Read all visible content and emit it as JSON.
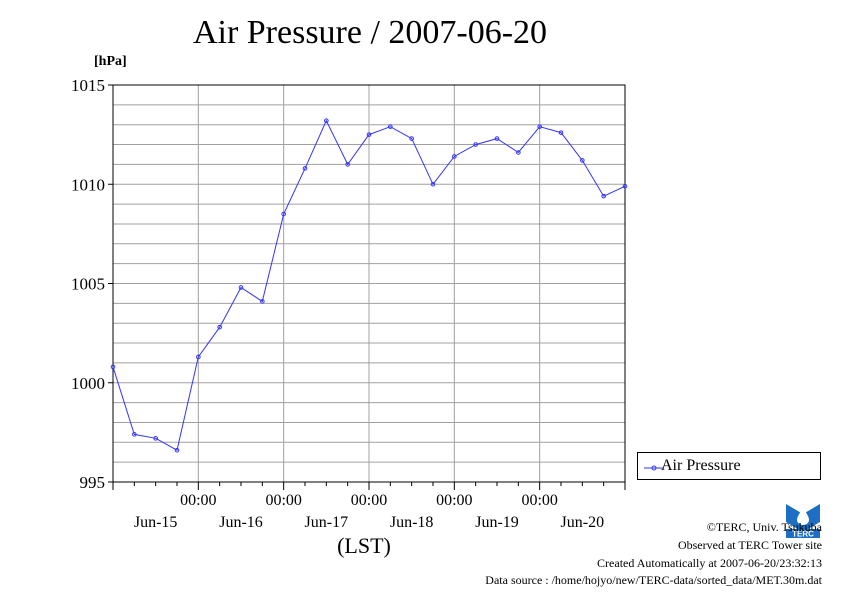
{
  "header": {
    "title": "Air Pressure / 2007-06-20",
    "unit": "[hPa]"
  },
  "legend": {
    "label": "Air Pressure"
  },
  "credits": {
    "copyright": "©TERC, Univ. Tsukuba",
    "observed": "Observed at TERC Tower site",
    "created": "Created Automatically at 2007-06-20/23:32:13",
    "source": "Data source : /home/hojyo/new/TERC-data/sorted_data/MET.30m.dat"
  },
  "logo": {
    "text": "TERC"
  },
  "colors": {
    "series": "#3333ff",
    "grid": "#a0a0a0",
    "logo": "#1e6fc4"
  },
  "chart_data": {
    "type": "line",
    "title": "Air Pressure / 2007-06-20",
    "xlabel": "(LST)",
    "ylabel": "[hPa]",
    "ylim": [
      995,
      1015
    ],
    "yticks": [
      995,
      1000,
      1005,
      1010,
      1015
    ],
    "xlim_days": [
      0,
      6
    ],
    "midnight_tick_label": "00:00",
    "day_labels": [
      "Jun-15",
      "Jun-16",
      "Jun-17",
      "Jun-18",
      "Jun-19",
      "Jun-20"
    ],
    "grid": true,
    "legend_position": "right",
    "series": [
      {
        "name": "Air Pressure",
        "x": [
          0,
          0.25,
          0.5,
          0.75,
          1,
          1.25,
          1.5,
          1.75,
          2,
          2.25,
          2.5,
          2.75,
          3,
          3.25,
          3.5,
          3.75,
          4,
          4.25,
          4.5,
          4.75,
          5,
          5.25,
          5.5,
          5.75,
          6
        ],
        "values": [
          1000.8,
          997.4,
          997.2,
          996.6,
          1001.3,
          1002.8,
          1004.8,
          1004.1,
          1008.5,
          1010.8,
          1013.2,
          1011.0,
          1012.5,
          1012.9,
          1012.3,
          1010.0,
          1011.4,
          1012.0,
          1012.3,
          1011.6,
          1012.9,
          1012.6,
          1011.2,
          1009.4,
          1009.9
        ]
      }
    ]
  }
}
